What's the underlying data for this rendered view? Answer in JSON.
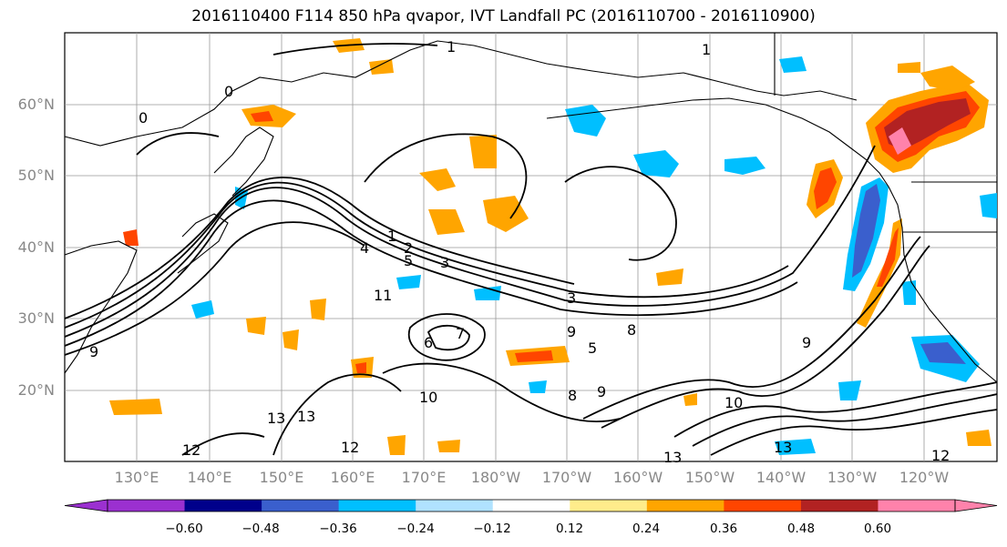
{
  "title": "2016110400 F114 850 hPa qvapor, IVT Landfall PC (2016110700 - 2016110900)",
  "lat_labels": [
    "60°N",
    "50°N",
    "40°N",
    "30°N",
    "20°N"
  ],
  "lon_labels": [
    "130°E",
    "140°E",
    "150°E",
    "160°E",
    "170°E",
    "180°W",
    "170°W",
    "160°W",
    "150°W",
    "140°W",
    "130°W",
    "120°W"
  ],
  "contour_labels": [
    "0",
    "0",
    "1",
    "1",
    "1",
    "2",
    "3",
    "3",
    "4",
    "5",
    "5",
    "6",
    "7",
    "8",
    "8",
    "9",
    "9",
    "9",
    "9",
    "10",
    "10",
    "11",
    "12",
    "12",
    "12",
    "13",
    "13",
    "13",
    "13"
  ],
  "colorbar": {
    "ticks": [
      "−0.60",
      "−0.48",
      "−0.36",
      "−0.24",
      "−0.12",
      "0.12",
      "0.24",
      "0.36",
      "0.48",
      "0.60"
    ],
    "colors": [
      "#9b30d0",
      "#00008b",
      "#3a5fcd",
      "#00bfff",
      "#b0e2ff",
      "#ffffff",
      "#ffec8b",
      "#ffa500",
      "#ff4500",
      "#b22222",
      "#ff82ab"
    ]
  }
}
